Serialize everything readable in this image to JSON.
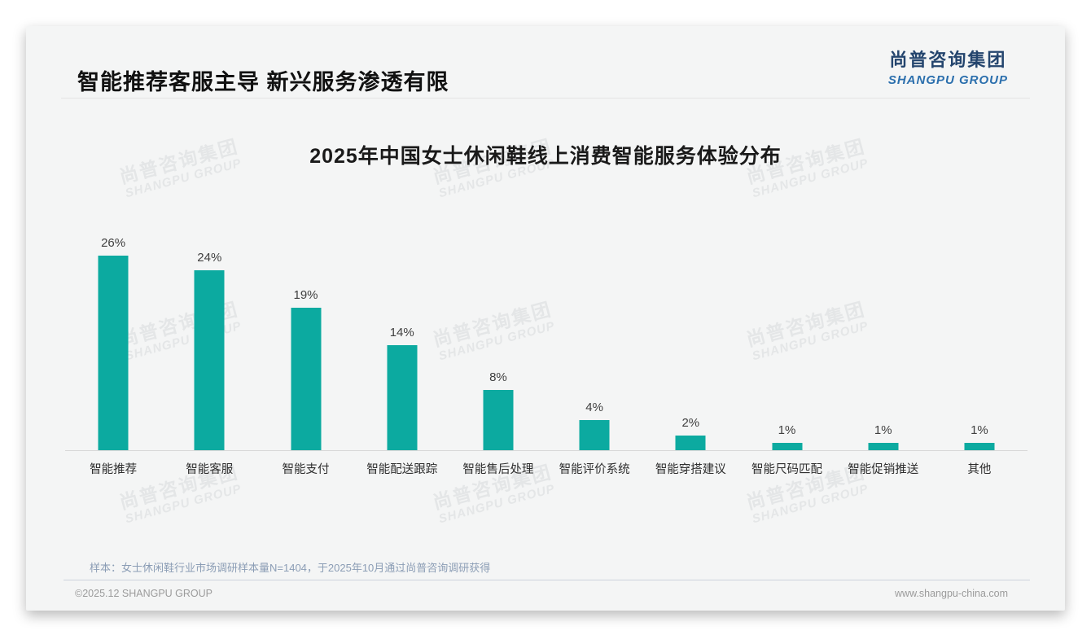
{
  "page": {
    "header": {
      "title": "智能推荐客服主导 新兴服务渗透有限",
      "logo": {
        "cn": "尚普咨询集团",
        "en": "SHANGPU GROUP"
      }
    },
    "watermark": {
      "line1": "尚普咨询集团",
      "line2": "SHANGPU GROUP"
    },
    "footer": {
      "note": "样本：女士休闲鞋行业市场调研样本量N=1404，于2025年10月通过尚普咨询调研获得",
      "copyright": "©2025.12 SHANGPU GROUP",
      "website": "www.shangpu-china.com"
    }
  },
  "chart_data": {
    "type": "bar",
    "title": "2025年中国女士休闲鞋线上消费智能服务体验分布",
    "categories": [
      "智能推荐",
      "智能客服",
      "智能支付",
      "智能配送跟踪",
      "智能售后处理",
      "智能评价系统",
      "智能穿搭建议",
      "智能尺码匹配",
      "智能促销推送",
      "其他"
    ],
    "values": [
      26,
      24,
      19,
      14,
      8,
      4,
      2,
      1,
      1,
      1
    ],
    "unit": "%",
    "bar_color": "#0caaa0",
    "value_label_color": "#3f3f3f",
    "axis_line_color": "#d8d8d8",
    "ylim": [
      0,
      28
    ],
    "grid": false,
    "value_labels": true,
    "legend": "none",
    "xlabel": "",
    "ylabel": ""
  }
}
